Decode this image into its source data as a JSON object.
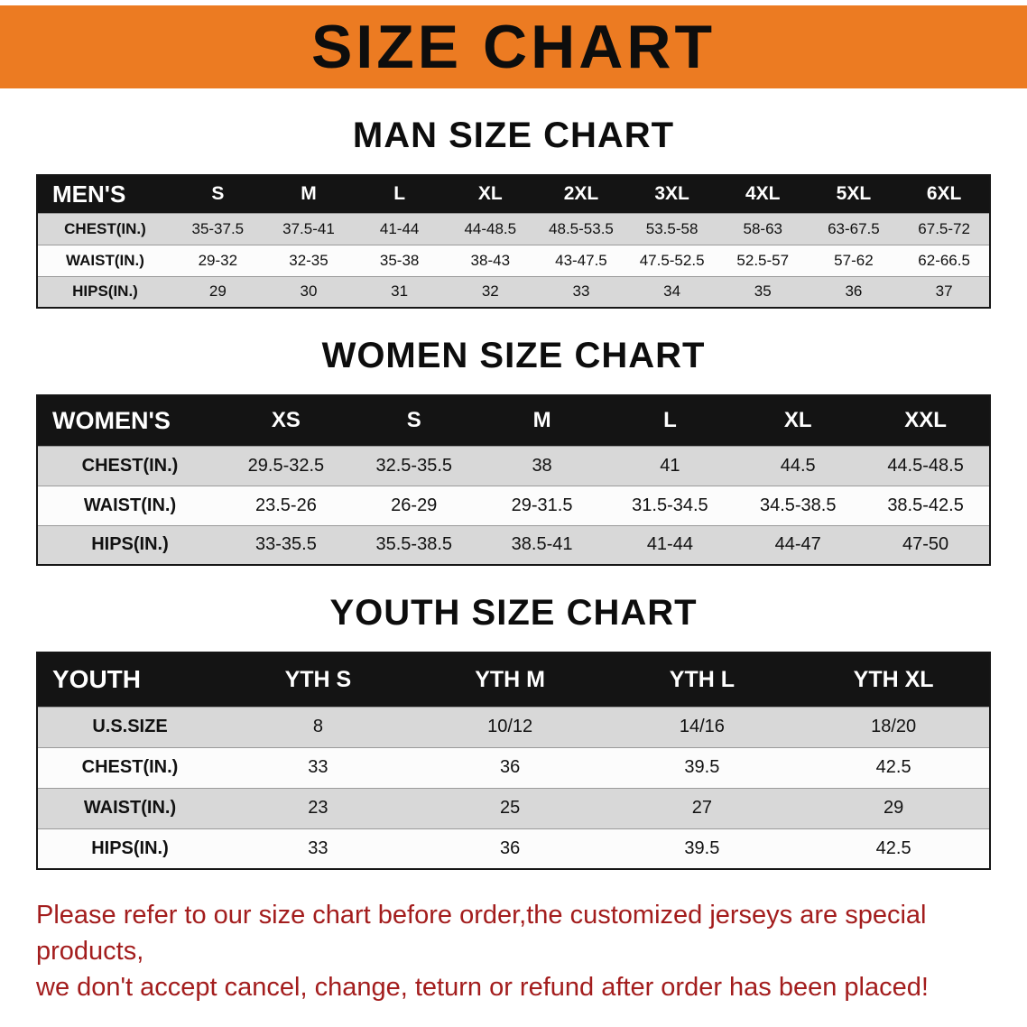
{
  "banner": {
    "title": "SIZE CHART"
  },
  "chart_data": [
    {
      "type": "table",
      "title": "MAN SIZE CHART",
      "corner_label": "MEN'S",
      "columns": [
        "S",
        "M",
        "L",
        "XL",
        "2XL",
        "3XL",
        "4XL",
        "5XL",
        "6XL"
      ],
      "rows": [
        {
          "label": "CHEST(IN.)",
          "values": [
            "35-37.5",
            "37.5-41",
            "41-44",
            "44-48.5",
            "48.5-53.5",
            "53.5-58",
            "58-63",
            "63-67.5",
            "67.5-72"
          ]
        },
        {
          "label": "WAIST(IN.)",
          "values": [
            "29-32",
            "32-35",
            "35-38",
            "38-43",
            "43-47.5",
            "47.5-52.5",
            "52.5-57",
            "57-62",
            "62-66.5"
          ]
        },
        {
          "label": "HIPS(IN.)",
          "values": [
            "29",
            "30",
            "31",
            "32",
            "33",
            "34",
            "35",
            "36",
            "37"
          ]
        }
      ]
    },
    {
      "type": "table",
      "title": "WOMEN SIZE CHART",
      "corner_label": "WOMEN'S",
      "columns": [
        "XS",
        "S",
        "M",
        "L",
        "XL",
        "XXL"
      ],
      "rows": [
        {
          "label": "CHEST(IN.)",
          "values": [
            "29.5-32.5",
            "32.5-35.5",
            "38",
            "41",
            "44.5",
            "44.5-48.5"
          ]
        },
        {
          "label": "WAIST(IN.)",
          "values": [
            "23.5-26",
            "26-29",
            "29-31.5",
            "31.5-34.5",
            "34.5-38.5",
            "38.5-42.5"
          ]
        },
        {
          "label": "HIPS(IN.)",
          "values": [
            "33-35.5",
            "35.5-38.5",
            "38.5-41",
            "41-44",
            "44-47",
            "47-50"
          ]
        }
      ]
    },
    {
      "type": "table",
      "title": "YOUTH SIZE CHART",
      "corner_label": "YOUTH",
      "columns": [
        "YTH S",
        "YTH M",
        "YTH L",
        "YTH XL"
      ],
      "rows": [
        {
          "label": "U.S.SIZE",
          "values": [
            "8",
            "10/12",
            "14/16",
            "18/20"
          ]
        },
        {
          "label": "CHEST(IN.)",
          "values": [
            "33",
            "36",
            "39.5",
            "42.5"
          ]
        },
        {
          "label": "WAIST(IN.)",
          "values": [
            "23",
            "25",
            "27",
            "29"
          ]
        },
        {
          "label": "HIPS(IN.)",
          "values": [
            "33",
            "36",
            "39.5",
            "42.5"
          ]
        }
      ]
    }
  ],
  "footer": {
    "lines": [
      "Please refer to our size chart before order,the customized jerseys are special products,",
      "we don't accept cancel, change, teturn or refund after order has been placed!"
    ]
  },
  "colors": {
    "banner_bg": "#EC7B22",
    "table_header_bg": "#141414",
    "row_alt_bg": "#D8D8D8",
    "row_bg": "#FCFCFC",
    "footer_text": "#A31D1D"
  }
}
